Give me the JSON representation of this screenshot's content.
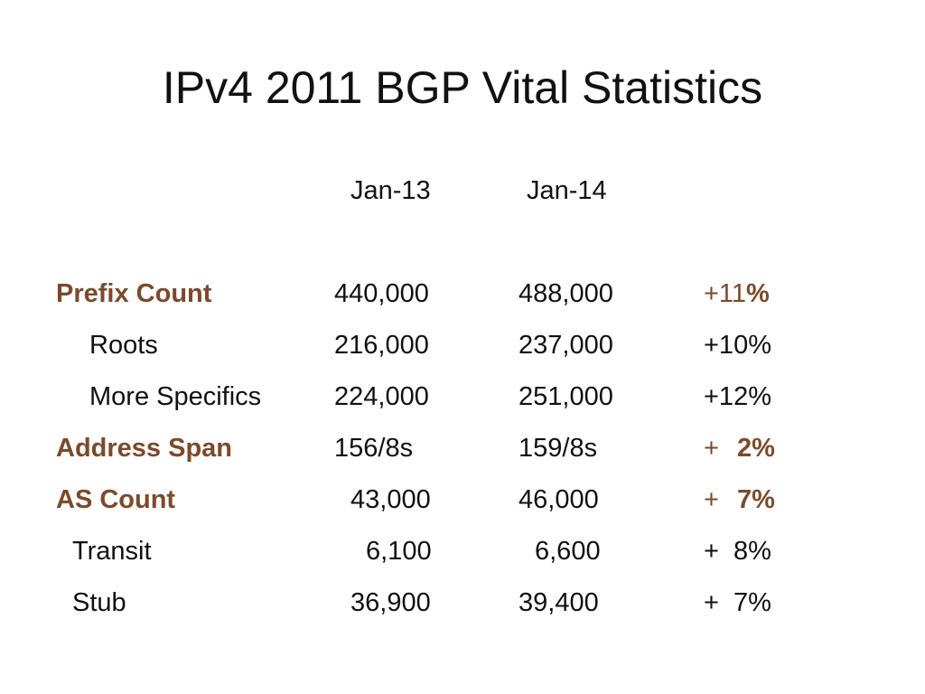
{
  "title": "IPv4 2011 BGP Vital Statistics",
  "colors": {
    "accent": "#7b4a2d",
    "text": "#111111",
    "background": "#ffffff"
  },
  "header": {
    "col1": "Jan-13",
    "col2": "Jan-14"
  },
  "rows": [
    {
      "label": "Prefix Count",
      "jan13": "440,000",
      "jan14": "488,000",
      "change_sign": "+11",
      "change_pct": "%"
    },
    {
      "label": "Roots",
      "jan13": "216,000",
      "jan14": "237,000",
      "change": "+10%"
    },
    {
      "label": "More Specifics",
      "jan13": "224,000",
      "jan14": "251,000",
      "change": "+12%"
    },
    {
      "label": "Address Span",
      "jan13": "156/8s",
      "jan14": "159/8s",
      "change_sign": "+",
      "change_pct": "2%"
    },
    {
      "label": "AS Count",
      "jan13": "43,000",
      "jan14": "46,000",
      "change_sign": "+",
      "change_pct": "7%"
    },
    {
      "label": "Transit",
      "jan13": "6,100",
      "jan14": "6,600",
      "change": "+  8%"
    },
    {
      "label": "Stub",
      "jan13": "36,900",
      "jan14": "39,400",
      "change": "+  7%"
    }
  ]
}
